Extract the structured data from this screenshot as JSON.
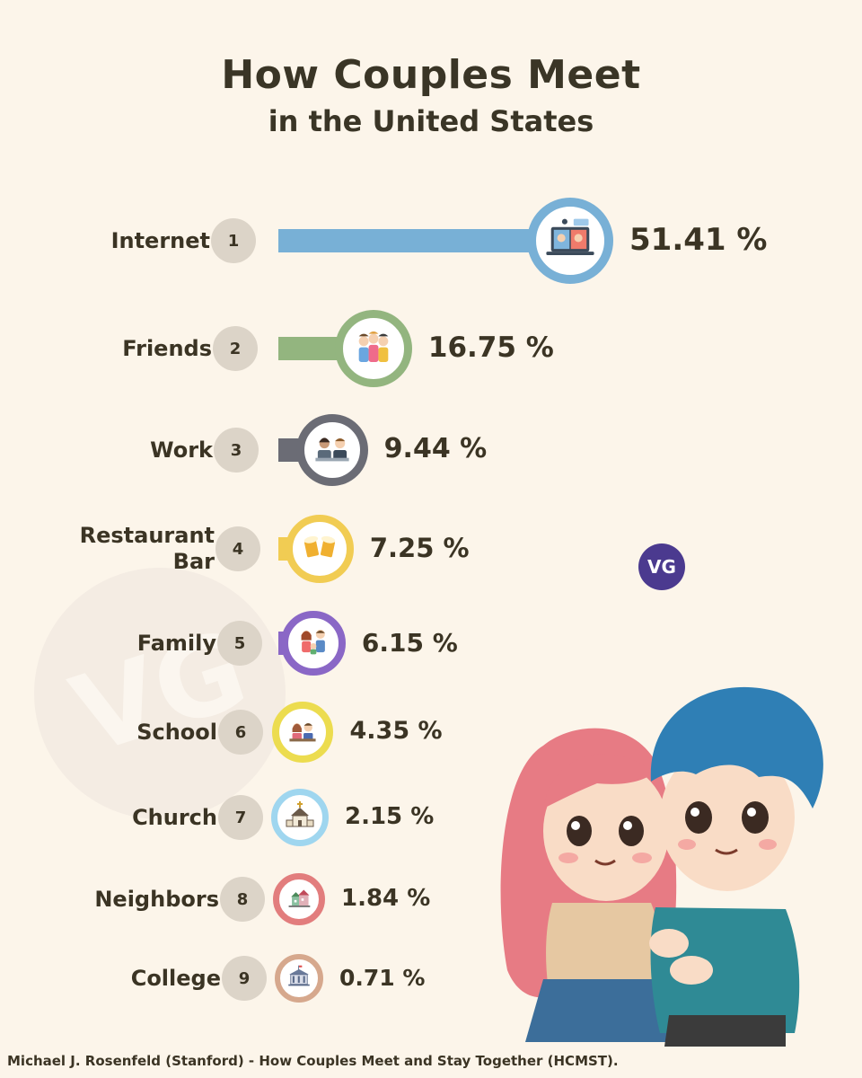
{
  "title": "How Couples Meet",
  "subtitle": "in the United States",
  "source": "Michael J. Rosenfeld (Stanford) - How Couples Meet and Stay Together (HCMST).",
  "logo_text": "VG",
  "watermark_text": "VG",
  "chart_data": {
    "type": "bar",
    "orientation": "horizontal",
    "title": "How Couples Meet",
    "subtitle": "in the United States",
    "value_suffix": " %",
    "categories": [
      "Internet",
      "Friends",
      "Work",
      "Restaurant\nBar",
      "Family",
      "School",
      "Church",
      "Neighbors",
      "College"
    ],
    "ranks": [
      "1",
      "2",
      "3",
      "4",
      "5",
      "6",
      "7",
      "8",
      "9"
    ],
    "values": [
      51.41,
      16.75,
      9.44,
      7.25,
      6.15,
      4.35,
      2.15,
      1.84,
      0.71
    ],
    "value_labels": [
      "51.41 %",
      "16.75 %",
      "9.44 %",
      "7.25 %",
      "6.15 %",
      "4.35 %",
      "2.15 %",
      "1.84 %",
      "0.71 %"
    ],
    "colors": [
      "#78b0d6",
      "#93b57f",
      "#6b6c75",
      "#f1cc53",
      "#8a67c6",
      "#ecdc4f",
      "#9fd6ef",
      "#e27d7d",
      "#d6a88d"
    ],
    "icons": [
      "video-call-icon",
      "friends-group-icon",
      "coworkers-icon",
      "beer-mugs-icon",
      "family-icon",
      "students-icon",
      "church-icon",
      "neighborhood-houses-icon",
      "college-building-icon"
    ],
    "legend": "none",
    "grid": false
  }
}
